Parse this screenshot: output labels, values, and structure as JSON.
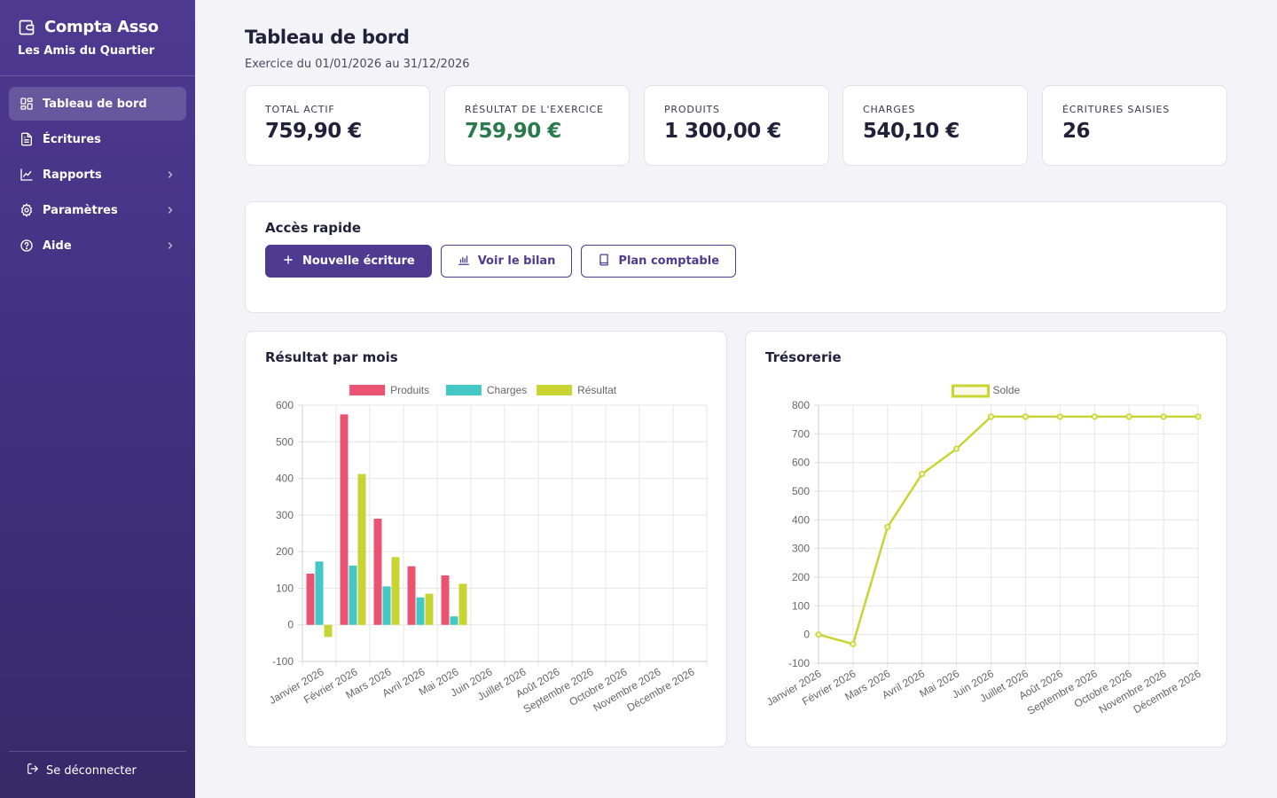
{
  "app": {
    "name": "Compta Asso",
    "organization": "Les Amis du Quartier"
  },
  "sidebar": {
    "items": [
      {
        "label": "Tableau de bord",
        "icon": "dashboard-icon",
        "active": true,
        "expandable": false
      },
      {
        "label": "Écritures",
        "icon": "document-icon",
        "active": false,
        "expandable": false
      },
      {
        "label": "Rapports",
        "icon": "chart-line-icon",
        "active": false,
        "expandable": true
      },
      {
        "label": "Paramètres",
        "icon": "gear-icon",
        "active": false,
        "expandable": true
      },
      {
        "label": "Aide",
        "icon": "help-icon",
        "active": false,
        "expandable": true
      }
    ],
    "logout_label": "Se déconnecter"
  },
  "header": {
    "title": "Tableau de bord",
    "subtitle": "Exercice du 01/01/2026 au 31/12/2026"
  },
  "stats": [
    {
      "label": "Total actif",
      "value": "759,90 €",
      "highlight": false
    },
    {
      "label": "Résultat de l'exercice",
      "value": "759,90 €",
      "highlight": true
    },
    {
      "label": "Produits",
      "value": "1 300,00 €",
      "highlight": false
    },
    {
      "label": "Charges",
      "value": "540,10 €",
      "highlight": false
    },
    {
      "label": "Écritures saisies",
      "value": "26",
      "highlight": false
    }
  ],
  "quick_access": {
    "title": "Accès rapide",
    "buttons": [
      {
        "label": "Nouvelle écriture",
        "icon": "plus-icon",
        "style": "primary"
      },
      {
        "label": "Voir le bilan",
        "icon": "bar-chart-icon",
        "style": "outline"
      },
      {
        "label": "Plan comptable",
        "icon": "book-icon",
        "style": "outline"
      }
    ]
  },
  "colors": {
    "accent": "#4e3a91",
    "positive": "#2a7a4c",
    "produits": "#ea5470",
    "charges": "#43c8c6",
    "resultat": "#c8d431"
  },
  "chart_data": [
    {
      "type": "bar",
      "title": "Résultat par mois",
      "categories": [
        "Janvier 2026",
        "Février 2026",
        "Mars 2026",
        "Avril 2026",
        "Mai 2026",
        "Juin 2026",
        "Juillet 2026",
        "Août 2026",
        "Septembre 2026",
        "Octobre 2026",
        "Novembre 2026",
        "Décembre 2026"
      ],
      "series": [
        {
          "name": "Produits",
          "color": "#ea5470",
          "values": [
            140,
            575,
            290,
            160,
            135,
            0,
            0,
            0,
            0,
            0,
            0,
            0
          ]
        },
        {
          "name": "Charges",
          "color": "#43c8c6",
          "values": [
            173,
            162,
            105,
            75,
            23,
            0,
            0,
            0,
            0,
            0,
            0,
            0
          ]
        },
        {
          "name": "Résultat",
          "color": "#c8d431",
          "values": [
            -33,
            412,
            185,
            85,
            112,
            0,
            0,
            0,
            0,
            0,
            0,
            0
          ]
        }
      ],
      "ylim": [
        -100,
        600
      ],
      "yticks": [
        600,
        500,
        400,
        300,
        200,
        100,
        0,
        -100
      ],
      "grid": true,
      "legend": "top"
    },
    {
      "type": "line",
      "title": "Trésorerie",
      "categories": [
        "Janvier 2026",
        "Février 2026",
        "Mars 2026",
        "Avril 2026",
        "Mai 2026",
        "Juin 2026",
        "Juillet 2026",
        "Août 2026",
        "Septembre 2026",
        "Octobre 2026",
        "Novembre 2026",
        "Décembre 2026"
      ],
      "series": [
        {
          "name": "Solde",
          "color": "#c8d431",
          "values": [
            0,
            -33,
            375,
            560,
            648,
            760,
            760,
            760,
            760,
            760,
            760,
            760
          ]
        }
      ],
      "ylim": [
        -100,
        800
      ],
      "yticks": [
        800,
        700,
        600,
        500,
        400,
        300,
        200,
        100,
        0,
        -100
      ],
      "grid": true,
      "legend": "top"
    }
  ]
}
